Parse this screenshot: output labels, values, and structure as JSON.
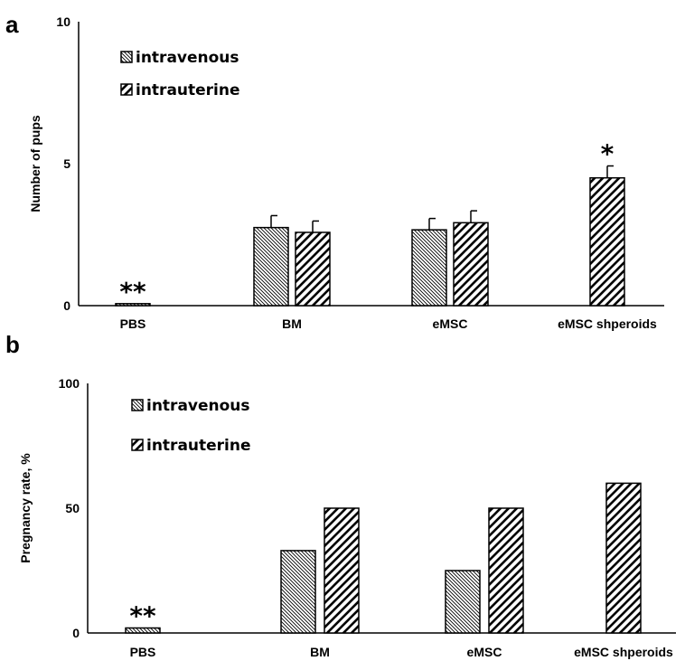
{
  "chart_data": [
    {
      "type": "bar",
      "panel_label": "a",
      "title": "",
      "xlabel": "",
      "ylabel": "Number of pups",
      "ylim": [
        0,
        10
      ],
      "yticks": [
        "0",
        "5",
        "10"
      ],
      "categories": [
        "PBS",
        "BM",
        "eMSC",
        "eMSC shperoids"
      ],
      "legend_position": "top-left",
      "grid": false,
      "series": [
        {
          "name": "intravenous",
          "pattern": "dense-hatch",
          "values": [
            0.07,
            2.75,
            2.67,
            null
          ],
          "errors": [
            0,
            0.42,
            0.4,
            null
          ]
        },
        {
          "name": "intrauterine",
          "pattern": "wide-hatch",
          "values": [
            null,
            2.58,
            2.92,
            4.5
          ],
          "errors": [
            null,
            0.4,
            0.42,
            0.42
          ]
        }
      ],
      "annotations": [
        {
          "text": "**",
          "category": "PBS"
        },
        {
          "text": "*",
          "category": "eMSC shperoids"
        }
      ]
    },
    {
      "type": "bar",
      "panel_label": "b",
      "title": "",
      "xlabel": "",
      "ylabel": "Pregnancy rate, %",
      "ylim": [
        0,
        100
      ],
      "yticks": [
        "0",
        "50",
        "100"
      ],
      "categories": [
        "PBS",
        "BM",
        "eMSC",
        "eMSC shperoids"
      ],
      "legend_position": "top-left",
      "grid": false,
      "series": [
        {
          "name": "intravenous",
          "pattern": "dense-hatch",
          "values": [
            2,
            33,
            25,
            null
          ]
        },
        {
          "name": "intrauterine",
          "pattern": "wide-hatch",
          "values": [
            null,
            50,
            50,
            60
          ]
        }
      ],
      "annotations": [
        {
          "text": "**",
          "category": "PBS"
        }
      ]
    }
  ]
}
